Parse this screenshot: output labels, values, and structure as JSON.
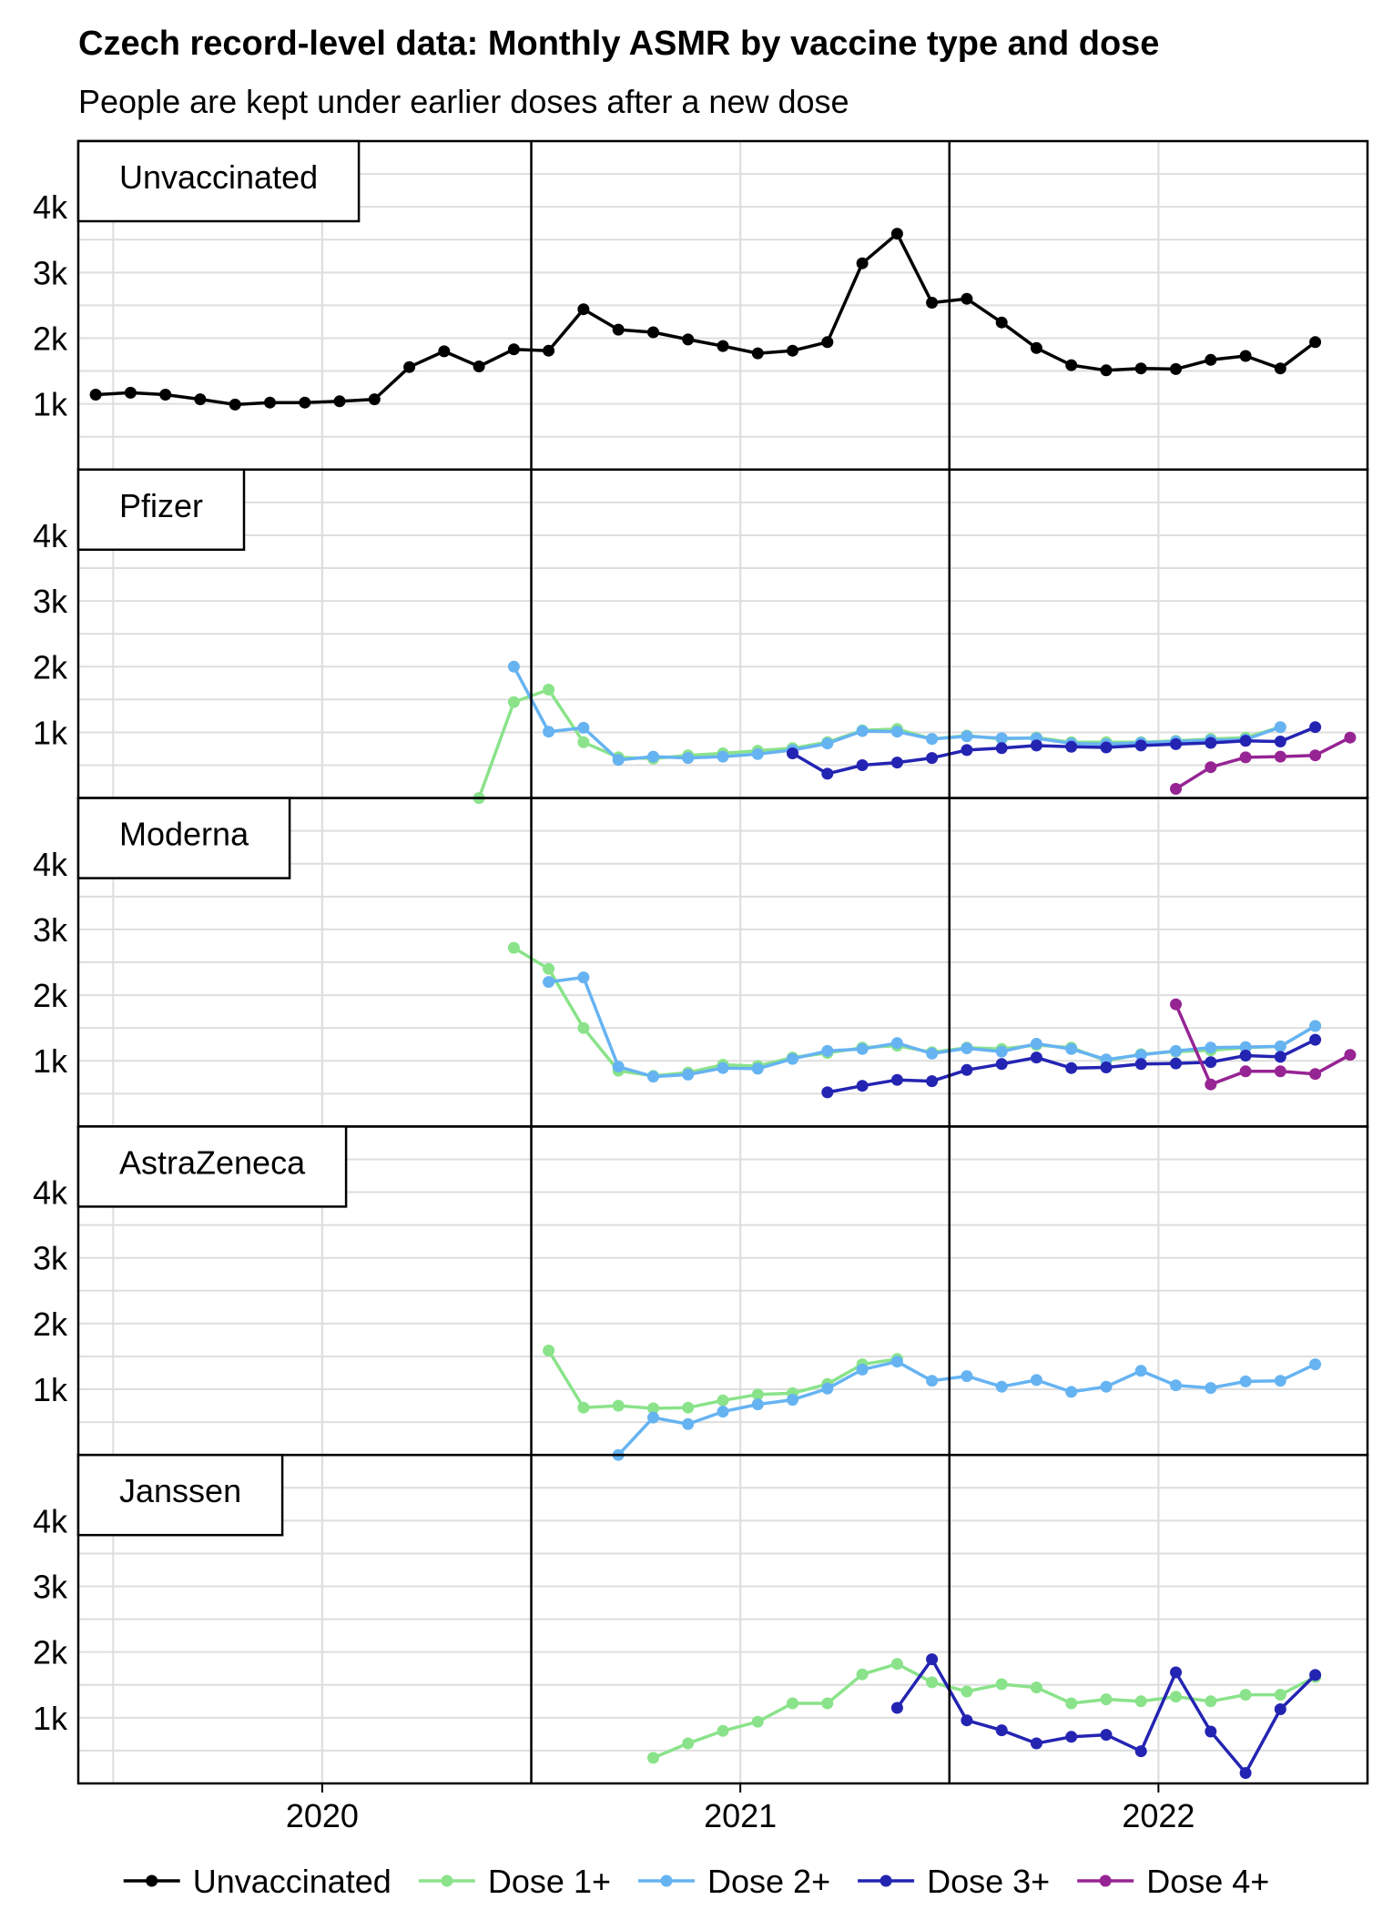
{
  "chart_data": {
    "type": "line",
    "title": "Czech record-level data: Monthly ASMR by vaccine type and dose",
    "subtitle": "People are kept under earlier doses after a new dose",
    "x_ticks": [
      {
        "label": "2020",
        "value": 6.5
      },
      {
        "label": "2021",
        "value": 18.5
      },
      {
        "label": "2022",
        "value": 30.5
      }
    ],
    "x_breaks": [
      12.5,
      24.5
    ],
    "y_ticks": [
      {
        "label": "1k",
        "value": 1000
      },
      {
        "label": "2k",
        "value": 2000
      },
      {
        "label": "3k",
        "value": 3000
      },
      {
        "label": "4k",
        "value": 4000
      }
    ],
    "xlim": [
      -0.5,
      36.5
    ],
    "ylim": [
      0,
      5000
    ],
    "legend": {
      "position": "bottom",
      "items": [
        {
          "label": "Unvaccinated",
          "color": "#000000"
        },
        {
          "label": "Dose 1+",
          "color": "#8ae38a"
        },
        {
          "label": "Dose 2+",
          "color": "#66b3f2"
        },
        {
          "label": "Dose 3+",
          "color": "#2424b3"
        },
        {
          "label": "Dose 4+",
          "color": "#962493"
        }
      ]
    },
    "panels": [
      {
        "title": "Unvaccinated",
        "series": [
          {
            "dose": "Unvaccinated",
            "color": "#000000",
            "start": 0,
            "values": [
              1140,
              1170,
              1140,
              1070,
              990,
              1020,
              1020,
              1040,
              1070,
              1560,
              1800,
              1570,
              1830,
              1810,
              2440,
              2130,
              2090,
              1980,
              1880,
              1770,
              1810,
              1940,
              3140,
              3590,
              2540,
              2600,
              2240,
              1850,
              1590,
              1510,
              1540,
              1530,
              1670,
              1730,
              1540,
              1940
            ]
          }
        ]
      },
      {
        "title": "Pfizer",
        "series": [
          {
            "dose": "Dose 1+",
            "color": "#8ae38a",
            "start": 11,
            "values": [
              0,
              1460,
              1650,
              850,
              620,
              600,
              650,
              680,
              720,
              760,
              850,
              1030,
              1050,
              900,
              950,
              900,
              920,
              850,
              850,
              850,
              870,
              900,
              920,
              1080
            ]
          },
          {
            "dose": "Dose 2+",
            "color": "#66b3f2",
            "start": 12,
            "values": [
              2000,
              1010,
              1070,
              580,
              630,
              610,
              630,
              670,
              730,
              830,
              1020,
              1010,
              900,
              940,
              910,
              910,
              830,
              820,
              840,
              860,
              880,
              890,
              1080
            ]
          },
          {
            "dose": "Dose 3+",
            "color": "#2424b3",
            "start": 20,
            "values": [
              680,
              370,
              500,
              540,
              610,
              730,
              760,
              800,
              780,
              770,
              800,
              820,
              840,
              870,
              860,
              1080
            ]
          },
          {
            "dose": "Dose 4+",
            "color": "#962493",
            "start": 31,
            "values": [
              140,
              470,
              620,
              630,
              650,
              920
            ]
          }
        ]
      },
      {
        "title": "Moderna",
        "series": [
          {
            "dose": "Dose 1+",
            "color": "#8ae38a",
            "start": 12,
            "values": [
              2720,
              2400,
              1500,
              850,
              770,
              820,
              940,
              920,
              1050,
              1120,
              1200,
              1230,
              1130,
              1200,
              1180,
              1240,
              1200,
              1000,
              1100,
              1140,
              1160,
              1200,
              1220,
              1530
            ]
          },
          {
            "dose": "Dose 2+",
            "color": "#66b3f2",
            "start": 13,
            "values": [
              2200,
              2270,
              910,
              760,
              790,
              890,
              880,
              1030,
              1150,
              1180,
              1270,
              1110,
              1190,
              1140,
              1260,
              1180,
              1020,
              1090,
              1150,
              1200,
              1210,
              1220,
              1530
            ]
          },
          {
            "dose": "Dose 3+",
            "color": "#2424b3",
            "start": 21,
            "values": [
              520,
              620,
              710,
              690,
              860,
              950,
              1050,
              890,
              900,
              950,
              960,
              980,
              1080,
              1060,
              1320
            ]
          },
          {
            "dose": "Dose 4+",
            "color": "#962493",
            "start": 31,
            "values": [
              1860,
              640,
              840,
              840,
              800,
              1090
            ]
          }
        ]
      },
      {
        "title": "AstraZeneca",
        "series": [
          {
            "dose": "Dose 1+",
            "color": "#8ae38a",
            "start": 13,
            "values": [
              1590,
              720,
              750,
              710,
              720,
              830,
              920,
              940,
              1080,
              1380,
              1460
            ]
          },
          {
            "dose": "Dose 2+",
            "color": "#66b3f2",
            "start": 15,
            "values": [
              0,
              570,
              470,
              660,
              770,
              840,
              1010,
              1300,
              1420,
              1130,
              1200,
              1040,
              1140,
              960,
              1040,
              1280,
              1060,
              1020,
              1120,
              1130,
              1380
            ]
          }
        ]
      },
      {
        "title": "Janssen",
        "series": [
          {
            "dose": "Dose 1+",
            "color": "#8ae38a",
            "start": 16,
            "values": [
              390,
              610,
              800,
              940,
              1220,
              1220,
              1660,
              1820,
              1540,
              1400,
              1510,
              1460,
              1220,
              1280,
              1250,
              1320,
              1250,
              1350,
              1350,
              1620
            ]
          },
          {
            "dose": "Dose 3+",
            "color": "#2424b3",
            "start": 23,
            "values": [
              1150,
              1890,
              960,
              810,
              610,
              710,
              740,
              490,
              1690,
              790,
              160,
              1130,
              1650
            ]
          }
        ]
      }
    ]
  }
}
